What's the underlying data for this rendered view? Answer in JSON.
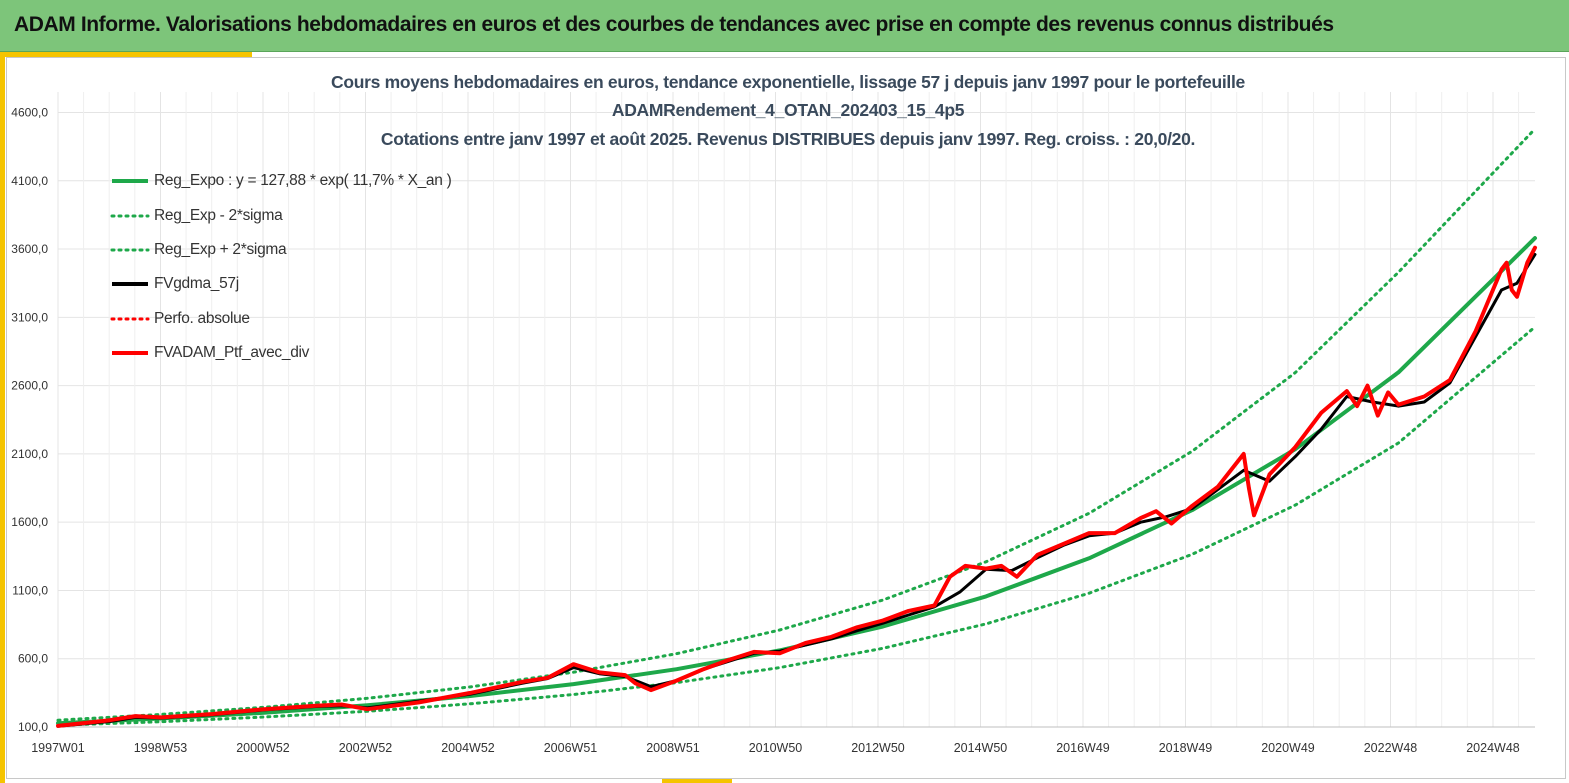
{
  "banner": {
    "title": "ADAM Informe. Valorisations hebdomadaires en euros et des courbes de tendances avec prise en compte des revenus connus distribués"
  },
  "colors": {
    "banner_bg": "#7dc57a",
    "accent": "#f5c400",
    "trend": "#1ea84a",
    "black_series": "#000000",
    "red_series": "#ff0000"
  },
  "chart_data": {
    "type": "line",
    "title": [
      "Cours moyens hebdomadaires  en euros, tendance exponentielle, lissage 57 j depuis janv 1997 pour le portefeuille",
      "ADAMRendement_4_OTAN_202403_15_4p5",
      "Cotations  entre janv 1997 et août  2025. Revenus DISTRIBUES depuis janv 1997. Reg. croiss. : 20,0/20."
    ],
    "xlabel": "",
    "ylabel": "",
    "x_ticks": [
      "1997W01",
      "1998W53",
      "2000W52",
      "2002W52",
      "2004W52",
      "2006W51",
      "2008W51",
      "2010W50",
      "2012W50",
      "2014W50",
      "2016W49",
      "2018W49",
      "2020W49",
      "2022W48",
      "2024W48"
    ],
    "x_range": [
      1997.0,
      2025.65
    ],
    "y_ticks": [
      "100,0",
      "600,0",
      "1100,0",
      "1600,0",
      "2100,0",
      "2600,0",
      "3100,0",
      "3600,0",
      "4100,0",
      "4600,0"
    ],
    "ylim": [
      100,
      4750
    ],
    "grid": true,
    "legend_position": "top-left",
    "legend": [
      {
        "label": "Reg_Expo : y = 127,88 * exp( 11,7% *  X_an )",
        "color": "#1ea84a",
        "style": "solid"
      },
      {
        "label": "Reg_Exp - 2*sigma",
        "color": "#1ea84a",
        "style": "dotted"
      },
      {
        "label": "Reg_Exp + 2*sigma",
        "color": "#1ea84a",
        "style": "dotted"
      },
      {
        "label": "FVgdma_57j",
        "color": "#000000",
        "style": "solid"
      },
      {
        "label": "Perfo. absolue",
        "color": "#ff0000",
        "style": "dotted"
      },
      {
        "label": "FVADAM_Ptf_avec_div",
        "color": "#ff0000",
        "style": "solid"
      }
    ],
    "series": [
      {
        "name": "Reg_Expo : y = 127,88 * exp( 11,7% *  X_an )",
        "x": [
          1997.0,
          1999.0,
          2001.0,
          2003.0,
          2005.0,
          2007.0,
          2009.0,
          2011.0,
          2013.0,
          2015.0,
          2017.0,
          2019.0,
          2021.0,
          2023.0,
          2025.65
        ],
        "y": [
          128,
          162,
          204,
          259,
          327,
          414,
          523,
          661,
          836,
          1056,
          1335,
          1688,
          2134,
          2697,
          3680
        ]
      },
      {
        "name": "Reg_Exp - 2*sigma",
        "x": [
          1997.0,
          1999.0,
          2001.0,
          2003.0,
          2005.0,
          2007.0,
          2009.0,
          2011.0,
          2013.0,
          2015.0,
          2017.0,
          2019.0,
          2021.0,
          2023.0,
          2025.65
        ],
        "y": [
          113,
          139,
          173,
          215,
          270,
          338,
          425,
          535,
          676,
          855,
          1080,
          1365,
          1725,
          2180,
          3030
        ]
      },
      {
        "name": "Reg_Exp + 2*sigma",
        "x": [
          1997.0,
          1999.0,
          2001.0,
          2003.0,
          2005.0,
          2007.0,
          2009.0,
          2011.0,
          2013.0,
          2015.0,
          2017.0,
          2019.0,
          2021.0,
          2023.0,
          2025.65
        ],
        "y": [
          150,
          192,
          244,
          310,
          394,
          501,
          637,
          810,
          1030,
          1310,
          1665,
          2120,
          2695,
          3430,
          4480
        ]
      },
      {
        "name": "FVgdma_57j",
        "x": [
          1997.0,
          1998.0,
          1998.5,
          1999.0,
          2000.0,
          2001.0,
          2002.0,
          2002.5,
          2003.0,
          2004.0,
          2005.0,
          2006.0,
          2006.5,
          2007.0,
          2007.5,
          2008.0,
          2008.5,
          2009.0,
          2009.5,
          2010.0,
          2010.5,
          2011.0,
          2011.5,
          2012.0,
          2012.5,
          2013.0,
          2013.5,
          2014.0,
          2014.5,
          2015.0,
          2015.5,
          2016.0,
          2016.5,
          2017.0,
          2017.5,
          2018.0,
          2018.5,
          2019.0,
          2019.5,
          2020.0,
          2020.5,
          2021.0,
          2021.5,
          2022.0,
          2022.5,
          2023.0,
          2023.5,
          2024.0,
          2024.5,
          2025.0,
          2025.3,
          2025.65
        ],
        "y": [
          105,
          140,
          170,
          165,
          190,
          225,
          250,
          255,
          240,
          290,
          340,
          420,
          455,
          535,
          490,
          470,
          395,
          440,
          520,
          580,
          640,
          655,
          700,
          745,
          805,
          860,
          920,
          980,
          1090,
          1255,
          1245,
          1340,
          1430,
          1500,
          1520,
          1600,
          1640,
          1700,
          1840,
          1980,
          1900,
          2080,
          2280,
          2520,
          2480,
          2450,
          2480,
          2620,
          2960,
          3300,
          3350,
          3560
        ]
      },
      {
        "name": "FVADAM_Ptf_avec_div",
        "x": [
          1997.0,
          1998.0,
          1998.5,
          1999.0,
          2000.0,
          2001.0,
          2002.0,
          2002.5,
          2003.0,
          2004.0,
          2005.0,
          2006.0,
          2006.5,
          2007.0,
          2007.5,
          2008.0,
          2008.2,
          2008.5,
          2009.0,
          2009.5,
          2010.0,
          2010.5,
          2011.0,
          2011.5,
          2012.0,
          2012.5,
          2013.0,
          2013.5,
          2014.0,
          2014.3,
          2014.6,
          2015.0,
          2015.3,
          2015.6,
          2016.0,
          2016.5,
          2017.0,
          2017.5,
          2018.0,
          2018.3,
          2018.6,
          2019.0,
          2019.5,
          2020.0,
          2020.1,
          2020.2,
          2020.5,
          2021.0,
          2021.5,
          2022.0,
          2022.2,
          2022.4,
          2022.6,
          2022.8,
          2023.0,
          2023.5,
          2024.0,
          2024.5,
          2025.0,
          2025.1,
          2025.2,
          2025.3,
          2025.5,
          2025.65
        ],
        "y": [
          108,
          150,
          180,
          170,
          195,
          230,
          255,
          265,
          230,
          280,
          350,
          430,
          460,
          560,
          500,
          480,
          420,
          370,
          440,
          520,
          590,
          650,
          640,
          715,
          760,
          830,
          880,
          950,
          990,
          1200,
          1280,
          1260,
          1280,
          1200,
          1360,
          1440,
          1520,
          1520,
          1630,
          1680,
          1590,
          1720,
          1860,
          2100,
          1850,
          1650,
          1950,
          2150,
          2400,
          2560,
          2450,
          2600,
          2380,
          2550,
          2460,
          2520,
          2640,
          3000,
          3450,
          3500,
          3300,
          3250,
          3500,
          3610
        ]
      }
    ]
  }
}
